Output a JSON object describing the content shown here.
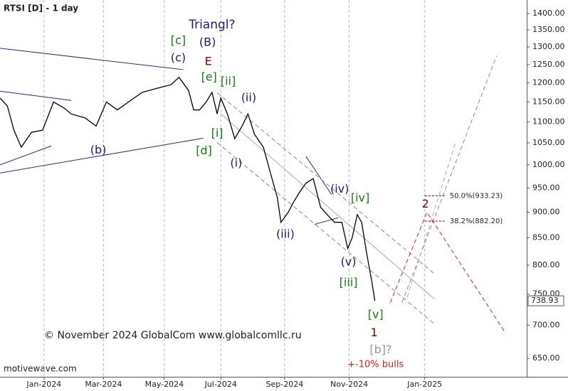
{
  "chart_data": {
    "type": "line",
    "title": "RTSI [D] - 1 day",
    "watermark": "motivewave.com",
    "copyright": "© November 2024 GlobalCom www.globalcomllc.ru",
    "log_scale": true,
    "grid": "x",
    "color": "#000000",
    "x": [
      -6.0,
      -5.0,
      -4.1,
      -3.1,
      -1.7,
      -0.2,
      1.3,
      2.7,
      3.7,
      5.6,
      7.1,
      8.5,
      10.0,
      11.5,
      13.4,
      15.3,
      17.3,
      18.4,
      19.7,
      20.4,
      21.2,
      22.1,
      22.9,
      23.6,
      24.1,
      25.0,
      26.0,
      27.0,
      27.8,
      28.7,
      29.9,
      30.9,
      31.8,
      32.3,
      33.3,
      34.0,
      34.8,
      35.7,
      36.7,
      37.7,
      38.6,
      39.6,
      40.6,
      41.4,
      42.0,
      42.7,
      43.3,
      44.0,
      44.7,
      45.1
    ],
    "values": [
      1160,
      1140,
      1080,
      1040,
      1075,
      1080,
      1150,
      1135,
      1120,
      1110,
      1090,
      1150,
      1130,
      1150,
      1175,
      1185,
      1195,
      1215,
      1180,
      1130,
      1130,
      1150,
      1175,
      1120,
      1160,
      1120,
      1060,
      1090,
      1120,
      1070,
      1040,
      980,
      930,
      880,
      900,
      920,
      940,
      960,
      970,
      910,
      895,
      880,
      880,
      830,
      850,
      895,
      880,
      820,
      770,
      738.93
    ],
    "xlim": [
      -6,
      65.8
    ],
    "ylim": [
      624,
      1443
    ],
    "xticks": [
      {
        "value": 0,
        "label": "Jan-2024"
      },
      {
        "value": 8.1,
        "label": "Mar-2024"
      },
      {
        "value": 16.4,
        "label": "May-2024"
      },
      {
        "value": 24.1,
        "label": "Jul-2024"
      },
      {
        "value": 32.8,
        "label": "Sep-2024"
      },
      {
        "value": 41.6,
        "label": "Nov-2024"
      },
      {
        "value": 51.9,
        "label": "Jan-2025"
      }
    ],
    "yticks": [
      {
        "value": 1400,
        "label": "1400.00"
      },
      {
        "value": 1350,
        "label": "1350.00"
      },
      {
        "value": 1300,
        "label": "1300.00"
      },
      {
        "value": 1250,
        "label": "1250.00"
      },
      {
        "value": 1200,
        "label": "1200.00"
      },
      {
        "value": 1150,
        "label": "1150.00"
      },
      {
        "value": 1100,
        "label": "1100.00"
      },
      {
        "value": 1050,
        "label": "1050.00"
      },
      {
        "value": 1000,
        "label": "1000.00"
      },
      {
        "value": 950,
        "label": "950.00"
      },
      {
        "value": 900,
        "label": "900.00"
      },
      {
        "value": 850,
        "label": "850.00"
      },
      {
        "value": 800,
        "label": "800.00"
      },
      {
        "value": 750,
        "label": "750.00"
      },
      {
        "value": 700,
        "label": "700.00"
      },
      {
        "value": 650,
        "label": "650.00"
      }
    ],
    "levels": [
      {
        "value": 933.23,
        "label": "50.0%(933.23)"
      },
      {
        "value": 882.2,
        "label": "38.2%(882.20)"
      }
    ],
    "lines": [
      {
        "x": [
          -6.0,
          19.0
        ],
        "y": [
          1296,
          1236
        ],
        "color": "#2a2a9a",
        "dash": false
      },
      {
        "x": [
          -6.0,
          3.7
        ],
        "y": [
          1178,
          1154
        ],
        "color": "#2a2a9a",
        "dash": false
      },
      {
        "x": [
          -6.0,
          1.0
        ],
        "y": [
          1000,
          1043
        ],
        "color": "#2a2a9a",
        "dash": false
      },
      {
        "x": [
          -6.0,
          21.7
        ],
        "y": [
          982,
          1061
        ],
        "color": "#2a2a9a",
        "dash": false
      },
      {
        "x": [
          35.7,
          39.2
        ],
        "y": [
          1019,
          936
        ],
        "color": "#2a2a9a",
        "dash": false
      },
      {
        "x": [
          36.9,
          40.1
        ],
        "y": [
          876,
          889
        ],
        "color": "#2a2a9a",
        "dash": false
      },
      {
        "x": [
          23.6,
          53.2
        ],
        "y": [
          1174,
          785
        ],
        "color": "#888888",
        "dash": true
      },
      {
        "x": [
          24.1,
          53.2
        ],
        "y": [
          1120,
          742
        ],
        "color": "#aaaaaa",
        "dash": false
      },
      {
        "x": [
          23.6,
          53.2
        ],
        "y": [
          1051,
          702
        ],
        "color": "#888888",
        "dash": true
      },
      {
        "x": [
          48.8,
          61.7
        ],
        "y": [
          736,
          1275
        ],
        "color": "#888888",
        "dash": true
      },
      {
        "x": [
          49.5,
          56.1
        ],
        "y": [
          745,
          1051
        ],
        "color": "#aaaaaa",
        "dash": true
      },
      {
        "x": [
          47.2,
          52.2,
          62.9
        ],
        "y": [
          736,
          900,
          688
        ],
        "color": "#e02020",
        "dash": true
      }
    ],
    "annotations": [
      {
        "text": "Triangl?",
        "color": "#1a1a7a",
        "x": 22.9,
        "y": 1365
      },
      {
        "text": "[c]",
        "color": "#1a7a1a",
        "x": 18.3,
        "y": 1318
      },
      {
        "text": "(B)",
        "color": "#1a1a7a",
        "x": 22.3,
        "y": 1312
      },
      {
        "text": "(c)",
        "color": "#1a1a7a",
        "x": 18.3,
        "y": 1267
      },
      {
        "text": "E",
        "color": "#8b0000",
        "x": 22.4,
        "y": 1257
      },
      {
        "text": "[e]",
        "color": "#1a7a1a",
        "x": 22.5,
        "y": 1214
      },
      {
        "text": "[ii]",
        "color": "#1a7a1a",
        "x": 25.1,
        "y": 1203
      },
      {
        "text": "(ii)",
        "color": "#1a1a7a",
        "x": 27.9,
        "y": 1160
      },
      {
        "text": "[i]",
        "color": "#1a7a1a",
        "x": 23.6,
        "y": 1072
      },
      {
        "text": "(b)",
        "color": "#1a1a7a",
        "x": 7.4,
        "y": 1033
      },
      {
        "text": "[d]",
        "color": "#1a7a1a",
        "x": 21.8,
        "y": 1031
      },
      {
        "text": "(i)",
        "color": "#1a1a7a",
        "x": 26.2,
        "y": 1003
      },
      {
        "text": "(iv)",
        "color": "#1a1a7a",
        "x": 40.3,
        "y": 947
      },
      {
        "text": "[iv]",
        "color": "#1a7a1a",
        "x": 43.1,
        "y": 928
      },
      {
        "text": "(iii)",
        "color": "#1a1a7a",
        "x": 32.9,
        "y": 856
      },
      {
        "text": "(v)",
        "color": "#1a1a7a",
        "x": 41.5,
        "y": 805
      },
      {
        "text": "[iii]",
        "color": "#1a7a1a",
        "x": 41.5,
        "y": 769
      },
      {
        "text": "[v]",
        "color": "#1a7a1a",
        "x": 45.2,
        "y": 716
      },
      {
        "text": "1",
        "color": "#8b0000",
        "x": 45.0,
        "y": 688
      },
      {
        "text": "[b]?",
        "color": "#999999",
        "x": 45.9,
        "y": 662
      },
      {
        "text": "+-10% bulls",
        "color": "#e02020",
        "x": 45.2,
        "y": 641
      },
      {
        "text": "2",
        "color": "#8b0000",
        "x": 52.0,
        "y": 916
      }
    ]
  }
}
